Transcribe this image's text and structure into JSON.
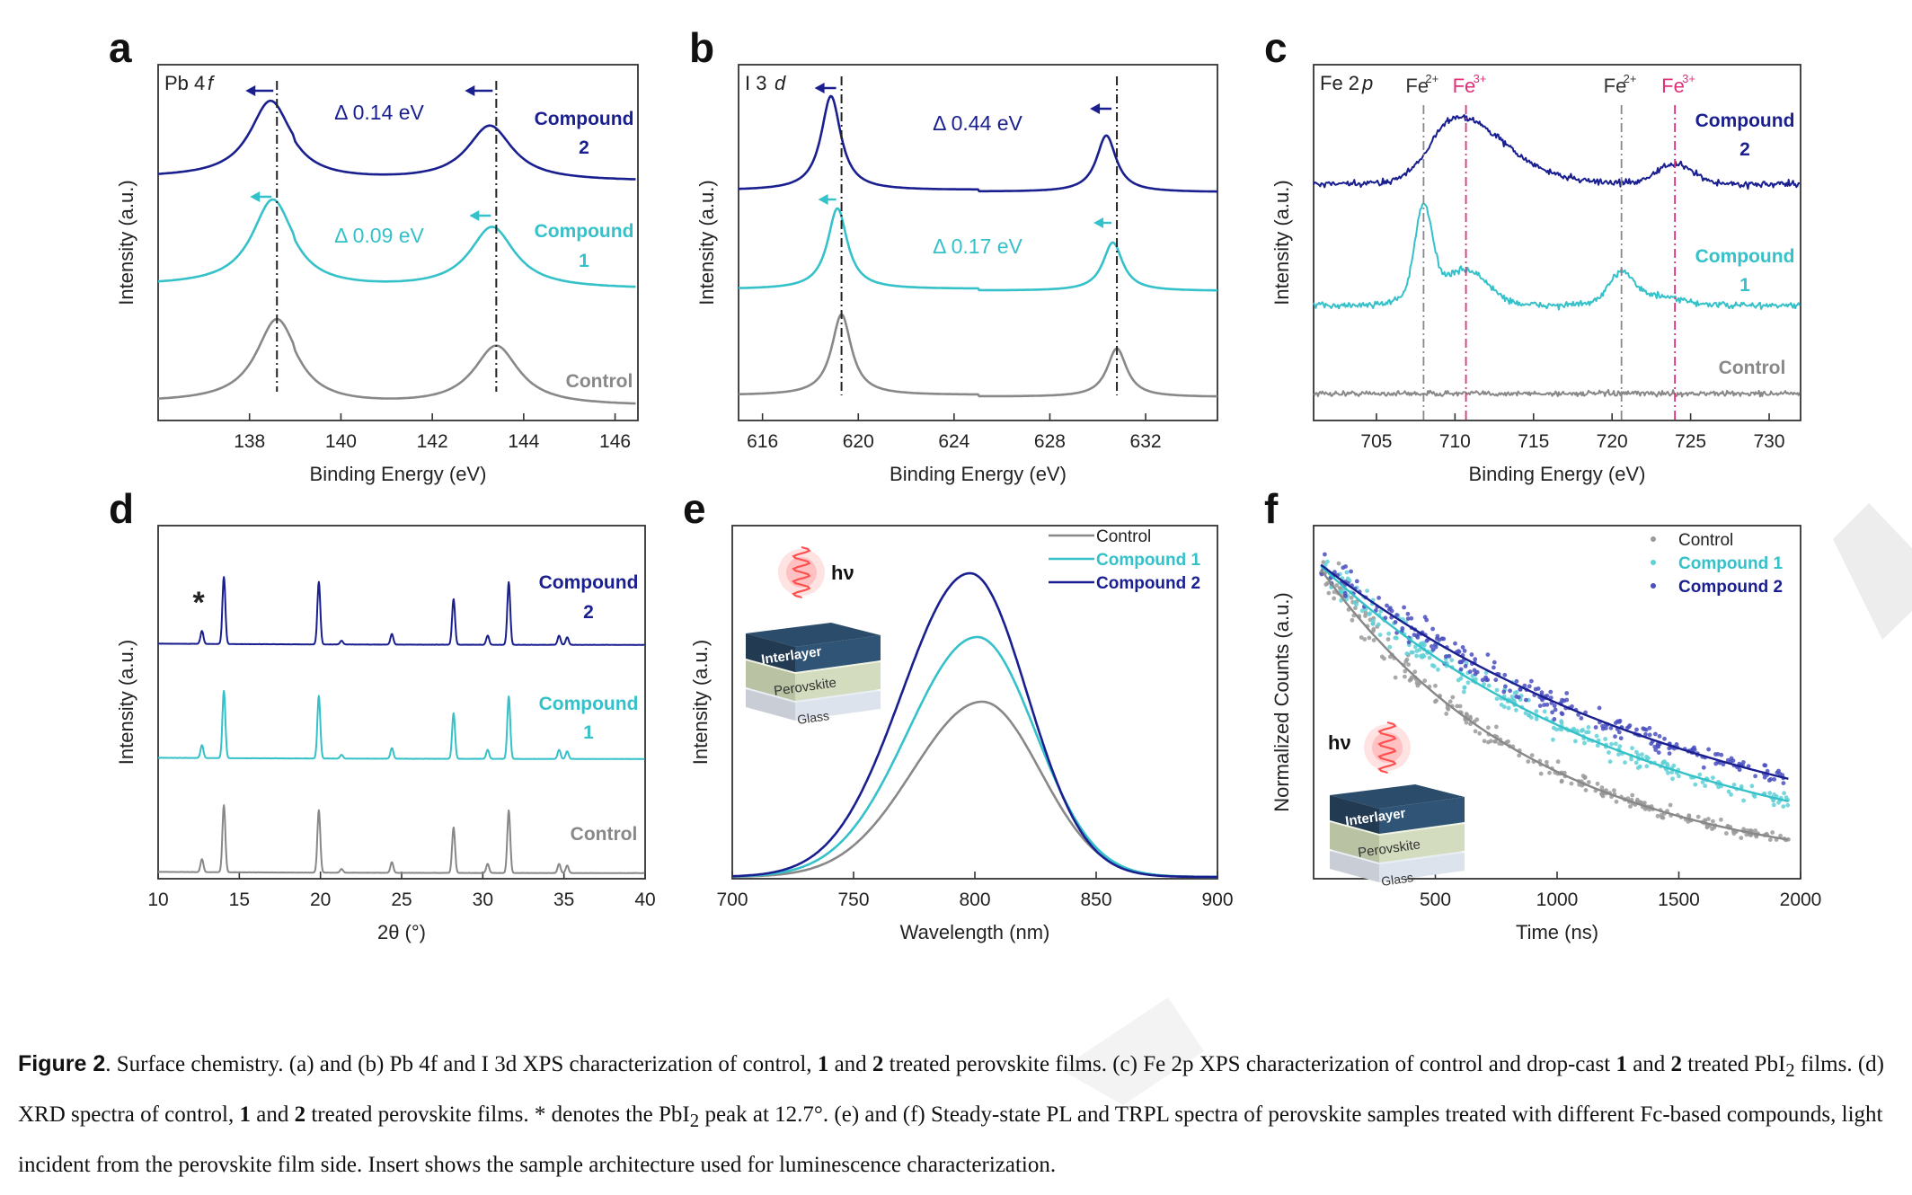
{
  "colors": {
    "control": "#888888",
    "compound1": "#35c1c9",
    "compound2": "#1a1f8f",
    "fe3": "#e0307a",
    "dash": "#222222",
    "pink_glow": "#ff5a5a"
  },
  "panels": {
    "a": {
      "letter": "a",
      "element": "Pb 4",
      "orbital": "f",
      "ylabel": "Intensity (a.u.)",
      "xlabel": "Binding Energy (eV)",
      "xticks": [
        "138",
        "140",
        "142",
        "144",
        "146"
      ],
      "delta2": "Δ 0.14 eV",
      "delta1": "Δ 0.09 eV",
      "legend2a": "Compound",
      "legend2b": "2",
      "legend1a": "Compound",
      "legend1b": "1",
      "legend0": "Control"
    },
    "b": {
      "letter": "b",
      "element": "I 3",
      "orbital": "d",
      "ylabel": "Intensity (a.u.)",
      "xlabel": "Binding Energy (eV)",
      "xticks": [
        "616",
        "620",
        "624",
        "628",
        "632"
      ],
      "delta2": "Δ 0.44 eV",
      "delta1": "Δ 0.17 eV"
    },
    "c": {
      "letter": "c",
      "element": "Fe 2",
      "orbital": "p",
      "ylabel": "Intensity (a.u.)",
      "xlabel": "Binding Energy (eV)",
      "xticks": [
        "705",
        "710",
        "715",
        "720",
        "725",
        "730"
      ],
      "fe2": "Fe",
      "fe2sup": "2+",
      "fe3": "Fe",
      "fe3sup": "3+",
      "legend2a": "Compound",
      "legend2b": "2",
      "legend1a": "Compound",
      "legend1b": "1",
      "legend0": "Control"
    },
    "d": {
      "letter": "d",
      "ylabel": "Intensity (a.u.)",
      "xlabel": "2θ (°)",
      "xticks": [
        "10",
        "15",
        "20",
        "25",
        "30",
        "35",
        "40"
      ],
      "star": "*",
      "legend2a": "Compound",
      "legend2b": "2",
      "legend1a": "Compound",
      "legend1b": "1",
      "legend0": "Control"
    },
    "e": {
      "letter": "e",
      "ylabel": "Intensity (a.u.)",
      "xlabel": "Wavelength (nm)",
      "xticks": [
        "700",
        "750",
        "800",
        "850",
        "900"
      ],
      "legend": [
        "Control",
        "Compound 1",
        "Compound 2"
      ],
      "hv": "hν",
      "layers": [
        "Interlayer",
        "Perovskite",
        "Glass"
      ]
    },
    "f": {
      "letter": "f",
      "ylabel": "Normalized Counts (a.u.)",
      "xlabel": "Time (ns)",
      "xticks": [
        "500",
        "1000",
        "1500",
        "2000"
      ],
      "legend": [
        "Control",
        "Compound 1",
        "Compound 2"
      ],
      "hv": "hν",
      "layers": [
        "Interlayer",
        "Perovskite",
        "Glass"
      ]
    }
  },
  "chart_data": [
    {
      "type": "line",
      "panel": "a",
      "title": "Pb 4f",
      "xlabel": "Binding Energy (eV)",
      "ylabel": "Intensity (a.u.)",
      "xlim": [
        136,
        146.5
      ],
      "reference_lines": [
        138.6,
        143.4
      ],
      "series": [
        {
          "name": "Control",
          "peaks": [
            138.6,
            143.4
          ]
        },
        {
          "name": "Compound 1",
          "peaks": [
            138.51,
            143.31
          ],
          "shift_label": "Δ 0.09 eV"
        },
        {
          "name": "Compound 2",
          "peaks": [
            138.46,
            143.26
          ],
          "shift_label": "Δ 0.14 eV"
        }
      ]
    },
    {
      "type": "line",
      "panel": "b",
      "title": "I 3d",
      "xlabel": "Binding Energy (eV)",
      "ylabel": "Intensity (a.u.)",
      "xlim": [
        615,
        635
      ],
      "reference_lines": [
        619.3,
        630.8
      ],
      "series": [
        {
          "name": "Control",
          "peaks": [
            619.3,
            630.8
          ]
        },
        {
          "name": "Compound 1",
          "peaks": [
            619.13,
            630.63
          ],
          "shift_label": "Δ 0.17 eV"
        },
        {
          "name": "Compound 2",
          "peaks": [
            618.86,
            630.36
          ],
          "shift_label": "Δ 0.44 eV"
        }
      ]
    },
    {
      "type": "line",
      "panel": "c",
      "title": "Fe 2p",
      "xlabel": "Binding Energy (eV)",
      "ylabel": "Intensity (a.u.)",
      "xlim": [
        701,
        732
      ],
      "reference_lines": {
        "Fe2+": [
          708.0,
          720.6
        ],
        "Fe3+": [
          710.7,
          724.0
        ]
      },
      "series": [
        {
          "name": "Control",
          "peaks": []
        },
        {
          "name": "Compound 1",
          "peaks": [
            708.0,
            720.6
          ]
        },
        {
          "name": "Compound 2",
          "peaks": [
            710.7,
            724.0
          ]
        }
      ]
    },
    {
      "type": "line",
      "panel": "d",
      "title": "",
      "xlabel": "2θ (°)",
      "ylabel": "Intensity (a.u.)",
      "xlim": [
        10,
        40
      ],
      "annotation": {
        "text": "*",
        "x": 12.7
      },
      "peaks": [
        12.7,
        14.1,
        19.9,
        24.4,
        28.2,
        30.3,
        31.6,
        34.7,
        35.2
      ],
      "series": [
        {
          "name": "Control"
        },
        {
          "name": "Compound 1"
        },
        {
          "name": "Compound 2"
        }
      ]
    },
    {
      "type": "line",
      "panel": "e",
      "title": "",
      "xlabel": "Wavelength (nm)",
      "ylabel": "Intensity (a.u.)",
      "xlim": [
        700,
        900
      ],
      "series": [
        {
          "name": "Control",
          "peak_x": 803,
          "peak_y": 0.49
        },
        {
          "name": "Compound 1",
          "peak_x": 801,
          "peak_y": 0.71
        },
        {
          "name": "Compound 2",
          "peak_x": 798,
          "peak_y": 0.9
        }
      ]
    },
    {
      "type": "scatter",
      "panel": "f",
      "title": "",
      "xlabel": "Time (ns)",
      "ylabel": "Normalized Counts (a.u.)",
      "xlim": [
        0,
        2000
      ],
      "series": [
        {
          "name": "Control",
          "tau": 900
        },
        {
          "name": "Compound 1",
          "tau": 1300
        },
        {
          "name": "Compound 2",
          "tau": 1600
        }
      ]
    }
  ],
  "caption": {
    "fig_label": "Figure 2",
    "p1": ". Surface chemistry. (a) and (b) Pb 4f and I 3d XPS characterization of control, ",
    "b1": "1",
    "p2": " and ",
    "b2": "2",
    "p3": " treated perovskite films. (c) Fe 2p XPS characterization of control and drop-cast ",
    "b3": "1",
    "p4": " and ",
    "b4": "2",
    "p5": " treated PbI",
    "sub1": "2",
    "p6": " films. (d) XRD spectra of control, ",
    "b5": "1",
    "p7": " and ",
    "b6": "2",
    "p8": " treated perovskite films. * denotes the PbI",
    "sub2": "2",
    "p9": " peak at 12.7°. (e) and (f) Steady-state PL and TRPL spectra of perovskite samples treated with different Fc-based compounds, light incident from the perovskite film side. Insert shows the sample architecture used for luminescence characterization."
  }
}
